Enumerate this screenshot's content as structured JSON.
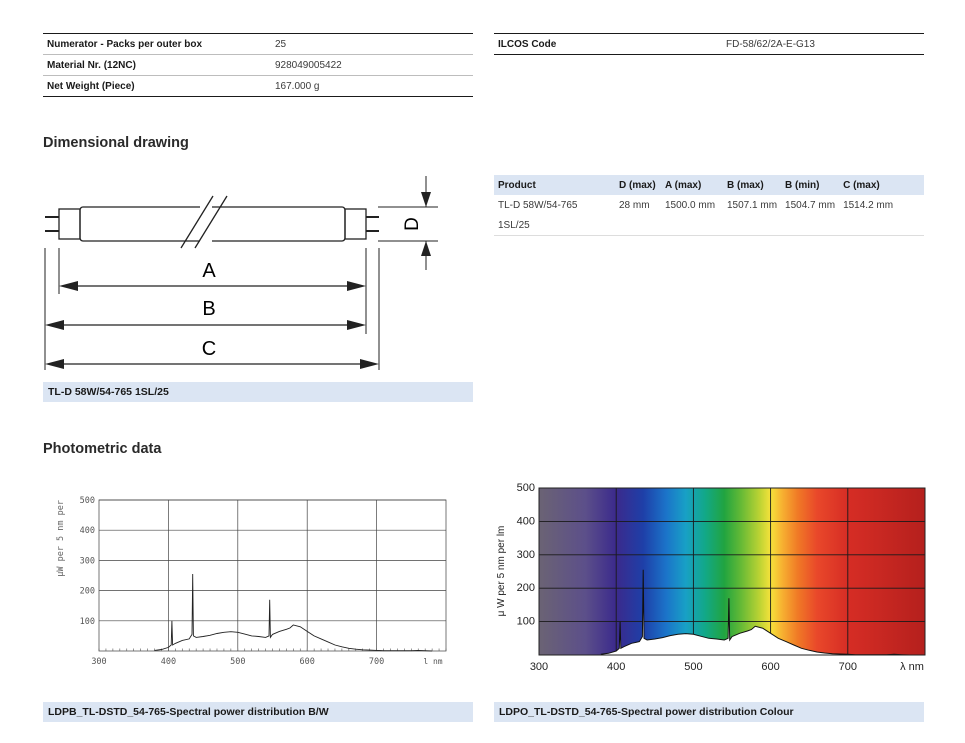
{
  "spec_left": [
    {
      "key": "Numerator - Packs per outer box",
      "value": "25"
    },
    {
      "key": "Material Nr. (12NC)",
      "value": "928049005422"
    },
    {
      "key": "Net Weight (Piece)",
      "value": "167.000 g"
    }
  ],
  "spec_right": [
    {
      "key": "ILCOS Code",
      "value": "FD-58/62/2A-E-G13"
    }
  ],
  "dimensional": {
    "heading": "Dimensional drawing",
    "labels": {
      "d": "D",
      "a": "A",
      "b": "B",
      "c": "C"
    },
    "caption": "TL-D 58W/54-765 1SL/25",
    "table": {
      "headers": [
        "Product",
        "D (max)",
        "A (max)",
        "B (max)",
        "B (min)",
        "C (max)"
      ],
      "rows": [
        {
          "product_line1": "TL-D 58W/54-765",
          "product_line2": "1SL/25",
          "d_max": "28 mm",
          "a_max": "1500.0 mm",
          "b_max": "1507.1 mm",
          "b_min": "1504.7 mm",
          "c_max": "1514.2 mm"
        }
      ]
    }
  },
  "photometric": {
    "heading": "Photometric data",
    "bw_caption": "LDPB_TL-DSTD_54-765-Spectral power distribution B/W",
    "colour_caption": "LDPO_TL-DSTD_54-765-Spectral power distribution Colour",
    "bw_ylabel": "μW per 5 nm per",
    "bw_xunit": "l nm",
    "colour_ylabel": "μ W per 5 nm per lm",
    "colour_xunit": "λ nm"
  },
  "chart_data": [
    {
      "type": "line",
      "title": "",
      "xlabel": "l nm",
      "ylabel": "μW per 5 nm per",
      "xlim": [
        300,
        800
      ],
      "ylim": [
        0,
        500
      ],
      "x_ticks": [
        300,
        400,
        500,
        600,
        700
      ],
      "y_ticks": [
        100,
        200,
        300,
        400,
        500
      ],
      "grid": true,
      "series": [
        {
          "x": [
            380,
            390,
            400,
            404,
            405,
            406,
            410,
            420,
            430,
            434,
            435,
            436,
            440,
            450,
            460,
            470,
            480,
            490,
            500,
            510,
            520,
            530,
            540,
            545,
            546,
            547,
            550,
            560,
            570,
            575,
            580,
            590,
            600,
            610,
            620,
            630,
            640,
            650,
            660,
            670,
            680,
            690,
            700,
            710,
            720,
            730,
            740,
            750,
            760,
            770,
            780
          ],
          "y": [
            2,
            5,
            12,
            20,
            100,
            20,
            25,
            35,
            40,
            55,
            255,
            50,
            45,
            48,
            52,
            58,
            62,
            64,
            62,
            56,
            50,
            48,
            45,
            50,
            170,
            45,
            55,
            65,
            72,
            76,
            86,
            80,
            65,
            50,
            40,
            30,
            20,
            14,
            9,
            6,
            4,
            3,
            2,
            1,
            1,
            1,
            1,
            1,
            2,
            1,
            0
          ]
        }
      ]
    },
    {
      "type": "line",
      "title": "",
      "xlabel": "λ nm",
      "ylabel": "μ W per 5 nm per lm",
      "xlim": [
        300,
        800
      ],
      "ylim": [
        0,
        500
      ],
      "x_ticks": [
        300,
        400,
        500,
        600,
        700
      ],
      "y_ticks": [
        100,
        200,
        300,
        400,
        500
      ],
      "grid": true,
      "background": "visible spectrum colour bands",
      "series": [
        {
          "x": [
            380,
            390,
            400,
            404,
            405,
            406,
            410,
            420,
            430,
            434,
            435,
            436,
            440,
            450,
            460,
            470,
            480,
            490,
            500,
            510,
            520,
            530,
            540,
            545,
            546,
            547,
            550,
            560,
            570,
            575,
            580,
            590,
            600,
            610,
            620,
            630,
            640,
            650,
            660,
            670,
            680,
            690,
            700,
            710,
            720,
            730,
            740,
            750,
            760,
            770,
            780
          ],
          "y": [
            2,
            5,
            12,
            20,
            100,
            20,
            25,
            35,
            40,
            55,
            255,
            50,
            45,
            48,
            52,
            58,
            62,
            64,
            62,
            56,
            50,
            48,
            45,
            50,
            170,
            45,
            55,
            65,
            72,
            76,
            86,
            80,
            65,
            50,
            40,
            30,
            20,
            14,
            9,
            6,
            4,
            3,
            2,
            1,
            1,
            1,
            1,
            1,
            2,
            1,
            0
          ]
        }
      ]
    }
  ]
}
